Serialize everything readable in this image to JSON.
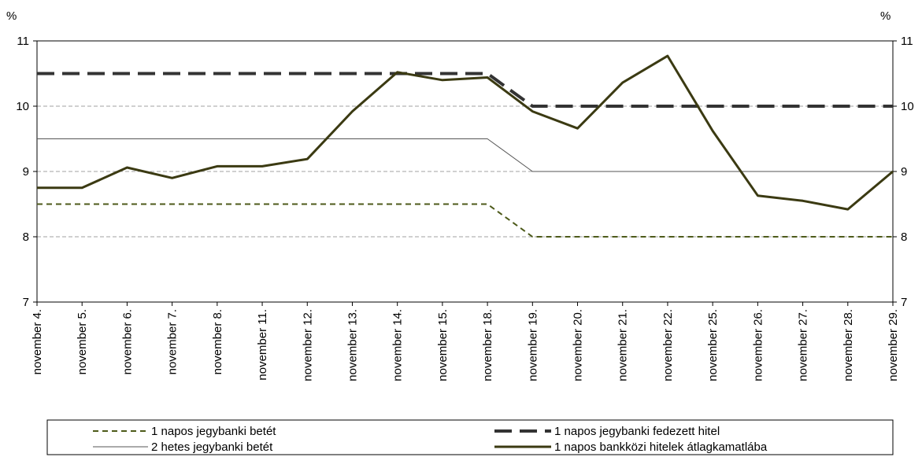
{
  "chart_data": {
    "type": "line",
    "categories": [
      "november 4.",
      "november 5.",
      "november 6.",
      "november 7.",
      "november 8.",
      "november 11.",
      "november 12.",
      "november 13.",
      "november 14.",
      "november 15.",
      "november 18.",
      "november 19.",
      "november 20.",
      "november 21.",
      "november 22.",
      "november 25.",
      "november 26.",
      "november 27.",
      "november 28.",
      "november 29."
    ],
    "y_unit_left": "%",
    "y_unit_right": "%",
    "ylim": [
      7,
      11
    ],
    "yticks": [
      7,
      8,
      9,
      10,
      11
    ],
    "grid": "horizontal dashed",
    "legend_position": "bottom",
    "series": [
      {
        "name": "1 napos jegybanki betét",
        "color": "#4d5a1a",
        "style": "short-dash",
        "values": [
          8.5,
          8.5,
          8.5,
          8.5,
          8.5,
          8.5,
          8.5,
          8.5,
          8.5,
          8.5,
          8.5,
          8.0,
          8.0,
          8.0,
          8.0,
          8.0,
          8.0,
          8.0,
          8.0,
          8.0
        ]
      },
      {
        "name": "1 napos jegybanki fedezett hitel",
        "color": "#333333",
        "style": "long-dash",
        "values": [
          10.5,
          10.5,
          10.5,
          10.5,
          10.5,
          10.5,
          10.5,
          10.5,
          10.5,
          10.5,
          10.5,
          10.0,
          10.0,
          10.0,
          10.0,
          10.0,
          10.0,
          10.0,
          10.0,
          10.0
        ]
      },
      {
        "name": "2 hetes jegybanki betét",
        "color": "#555555",
        "style": "thin",
        "values": [
          9.5,
          9.5,
          9.5,
          9.5,
          9.5,
          9.5,
          9.5,
          9.5,
          9.5,
          9.5,
          9.5,
          9.0,
          9.0,
          9.0,
          9.0,
          9.0,
          9.0,
          9.0,
          9.0,
          9.0
        ]
      },
      {
        "name": "1 napos bankközi hitelek átlagkamatlába",
        "color": "#3b3a12",
        "style": "thick",
        "values": [
          8.75,
          8.75,
          9.06,
          8.9,
          9.08,
          9.08,
          9.19,
          9.92,
          10.52,
          10.4,
          10.44,
          9.92,
          9.66,
          10.36,
          10.77,
          9.62,
          8.63,
          8.55,
          8.42,
          9.0
        ]
      }
    ]
  }
}
